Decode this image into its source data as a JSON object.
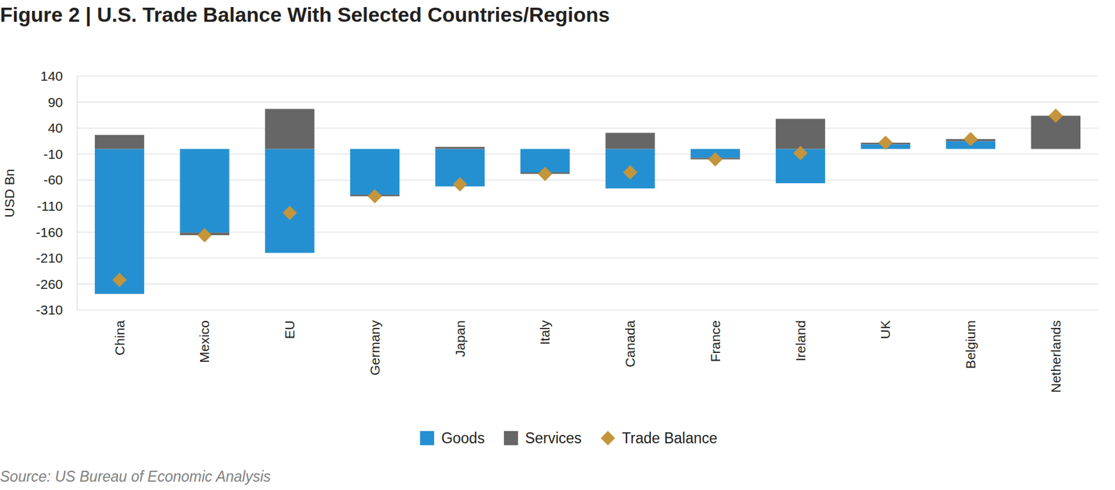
{
  "chart_data": {
    "type": "bar",
    "title": "Figure 2 | U.S. Trade Balance With Selected Countries/Regions",
    "y_label": "USD Bn",
    "source": "Source: US Bureau of Economic Analysis",
    "categories": [
      "China",
      "Mexico",
      "EU",
      "Germany",
      "Japan",
      "Italy",
      "Canada",
      "France",
      "Ireland",
      "UK",
      "Belgium",
      "Netherlands"
    ],
    "series": [
      {
        "name": "Goods",
        "color": "#2590d1",
        "values": [
          -279,
          -161,
          -200,
          -88,
          -72,
          -45,
          -76,
          -17,
          -66,
          9,
          15,
          0
        ]
      },
      {
        "name": "Services",
        "color": "#666666",
        "values": [
          27,
          -5,
          77,
          -3,
          4,
          -3,
          31,
          -3,
          58,
          3,
          4,
          64
        ]
      },
      {
        "name": "Trade Balance",
        "type": "scatter",
        "marker": "diamond",
        "color": "#c4953a",
        "values": [
          -252,
          -166,
          -123,
          -91,
          -68,
          -48,
          -45,
          -20,
          -8,
          12,
          19,
          64
        ]
      }
    ],
    "ylim": [
      -310,
      140
    ],
    "yticks": [
      140,
      90,
      40,
      -10,
      -60,
      -110,
      -160,
      -210,
      -260,
      -310
    ],
    "stacked": true,
    "grid": true,
    "legend": "bottom"
  }
}
